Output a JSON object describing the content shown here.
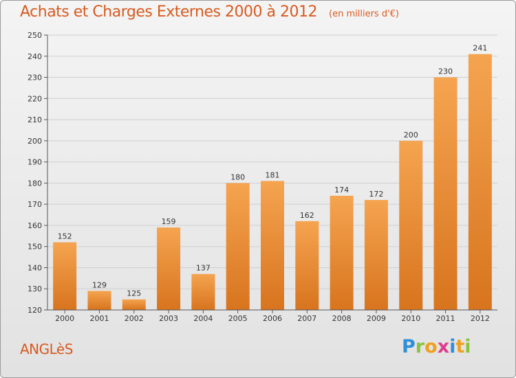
{
  "header": {
    "title": "Achats et Charges Externes 2000 à 2012",
    "unit": "(en milliers d'€)"
  },
  "footer": {
    "commune": "ANGLèS"
  },
  "logo": {
    "letters": [
      {
        "char": "P",
        "color": "#2f8fd8"
      },
      {
        "char": "r",
        "color": "#8ac43f"
      },
      {
        "char": "o",
        "color": "#f0a020"
      },
      {
        "char": "x",
        "color": "#e03c8c"
      },
      {
        "char": "i",
        "color": "#2f8fd8"
      },
      {
        "char": "t",
        "color": "#f0a020"
      },
      {
        "char": "i",
        "color": "#8ac43f"
      }
    ]
  },
  "colors": {
    "accent": "#d85a20",
    "bar_top": "#f5a450",
    "bar_bottom": "#d8741e"
  },
  "chart_data": {
    "type": "bar",
    "title": "Achats et Charges Externes 2000 à 2012",
    "subtitle": "(en milliers d'€)",
    "xlabel": "",
    "ylabel": "",
    "categories": [
      "2000",
      "2001",
      "2002",
      "2003",
      "2004",
      "2005",
      "2006",
      "2007",
      "2008",
      "2009",
      "2010",
      "2011",
      "2012"
    ],
    "values": [
      152,
      129,
      125,
      159,
      137,
      180,
      181,
      162,
      174,
      172,
      200,
      230,
      241
    ],
    "ylim": [
      120,
      250
    ],
    "yticks": [
      120,
      130,
      140,
      150,
      160,
      170,
      180,
      190,
      200,
      210,
      220,
      230,
      240,
      250
    ],
    "grid": true,
    "legend": "none"
  }
}
